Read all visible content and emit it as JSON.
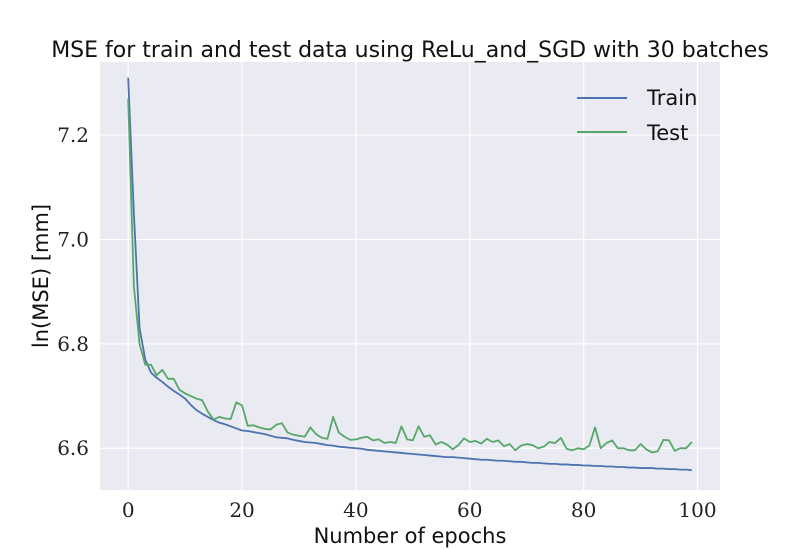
{
  "chart_data": {
    "type": "line",
    "title": "MSE for train and test data using ReLu_and_SGD with 30 batches",
    "xlabel": "Number of epochs",
    "ylabel": "ln(MSE) [mm]",
    "xlim": [
      -4.95,
      103.95
    ],
    "ylim": [
      6.52,
      7.34
    ],
    "xticks": [
      0,
      20,
      40,
      60,
      80,
      100
    ],
    "yticks": [
      6.6,
      6.8,
      7.0,
      7.2
    ],
    "xtick_labels": [
      "0",
      "20",
      "40",
      "60",
      "80",
      "100"
    ],
    "ytick_labels": [
      "6.6",
      "6.8",
      "7.0",
      "7.2"
    ],
    "grid": true,
    "legend_position": "top-right",
    "background_color": "#eaeaf2",
    "series": [
      {
        "name": "Train",
        "color": "#4c72b0",
        "x": [
          0,
          1,
          2,
          3,
          4,
          5,
          6,
          7,
          8,
          9,
          10,
          11,
          12,
          13,
          14,
          15,
          16,
          17,
          18,
          19,
          20,
          21,
          22,
          23,
          24,
          25,
          26,
          27,
          28,
          29,
          30,
          31,
          32,
          33,
          34,
          35,
          36,
          37,
          38,
          39,
          40,
          41,
          42,
          43,
          44,
          45,
          46,
          47,
          48,
          49,
          50,
          51,
          52,
          53,
          54,
          55,
          56,
          57,
          58,
          59,
          60,
          61,
          62,
          63,
          64,
          65,
          66,
          67,
          68,
          69,
          70,
          71,
          72,
          73,
          74,
          75,
          76,
          77,
          78,
          79,
          80,
          81,
          82,
          83,
          84,
          85,
          86,
          87,
          88,
          89,
          90,
          91,
          92,
          93,
          94,
          95,
          96,
          97,
          98,
          99
        ],
        "values": [
          7.31,
          7.05,
          6.83,
          6.77,
          6.745,
          6.735,
          6.727,
          6.718,
          6.71,
          6.703,
          6.695,
          6.683,
          6.673,
          6.666,
          6.66,
          6.654,
          6.649,
          6.646,
          6.642,
          6.638,
          6.634,
          6.633,
          6.631,
          6.629,
          6.627,
          6.624,
          6.621,
          6.62,
          6.619,
          6.616,
          6.614,
          6.612,
          6.611,
          6.61,
          6.608,
          6.606,
          6.605,
          6.603,
          6.602,
          6.601,
          6.6,
          6.599,
          6.597,
          6.596,
          6.595,
          6.594,
          6.593,
          6.592,
          6.591,
          6.59,
          6.589,
          6.588,
          6.587,
          6.586,
          6.585,
          6.584,
          6.583,
          6.583,
          6.582,
          6.581,
          6.58,
          6.579,
          6.578,
          6.578,
          6.577,
          6.576,
          6.576,
          6.575,
          6.574,
          6.574,
          6.573,
          6.572,
          6.572,
          6.571,
          6.57,
          6.57,
          6.569,
          6.569,
          6.568,
          6.568,
          6.567,
          6.567,
          6.566,
          6.566,
          6.565,
          6.565,
          6.564,
          6.564,
          6.563,
          6.563,
          6.562,
          6.562,
          6.562,
          6.561,
          6.561,
          6.56,
          6.56,
          6.559,
          6.559,
          6.558
        ]
      },
      {
        "name": "Test",
        "color": "#55a868",
        "x": [
          0,
          1,
          2,
          3,
          4,
          5,
          6,
          7,
          8,
          9,
          10,
          11,
          12,
          13,
          14,
          15,
          16,
          17,
          18,
          19,
          20,
          21,
          22,
          23,
          24,
          25,
          26,
          27,
          28,
          29,
          30,
          31,
          32,
          33,
          34,
          35,
          36,
          37,
          38,
          39,
          40,
          41,
          42,
          43,
          44,
          45,
          46,
          47,
          48,
          49,
          50,
          51,
          52,
          53,
          54,
          55,
          56,
          57,
          58,
          59,
          60,
          61,
          62,
          63,
          64,
          65,
          66,
          67,
          68,
          69,
          70,
          71,
          72,
          73,
          74,
          75,
          76,
          77,
          78,
          79,
          80,
          81,
          82,
          83,
          84,
          85,
          86,
          87,
          88,
          89,
          90,
          91,
          92,
          93,
          94,
          95,
          96,
          97,
          98,
          99
        ],
        "values": [
          7.27,
          6.91,
          6.8,
          6.76,
          6.76,
          6.74,
          6.75,
          6.733,
          6.733,
          6.712,
          6.705,
          6.7,
          6.695,
          6.692,
          6.67,
          6.655,
          6.66,
          6.657,
          6.656,
          6.688,
          6.682,
          6.643,
          6.644,
          6.64,
          6.637,
          6.636,
          6.645,
          6.648,
          6.63,
          6.626,
          6.624,
          6.622,
          6.64,
          6.627,
          6.62,
          6.618,
          6.66,
          6.63,
          6.622,
          6.616,
          6.617,
          6.62,
          6.622,
          6.615,
          6.617,
          6.61,
          6.612,
          6.61,
          6.642,
          6.617,
          6.615,
          6.642,
          6.622,
          6.625,
          6.607,
          6.612,
          6.607,
          6.598,
          6.606,
          6.619,
          6.612,
          6.614,
          6.609,
          6.618,
          6.612,
          6.615,
          6.604,
          6.608,
          6.596,
          6.605,
          6.608,
          6.606,
          6.6,
          6.603,
          6.612,
          6.61,
          6.62,
          6.599,
          6.596,
          6.6,
          6.598,
          6.605,
          6.64,
          6.6,
          6.61,
          6.615,
          6.6,
          6.6,
          6.596,
          6.596,
          6.608,
          6.598,
          6.592,
          6.594,
          6.616,
          6.615,
          6.595,
          6.6,
          6.6,
          6.612
        ]
      }
    ]
  }
}
